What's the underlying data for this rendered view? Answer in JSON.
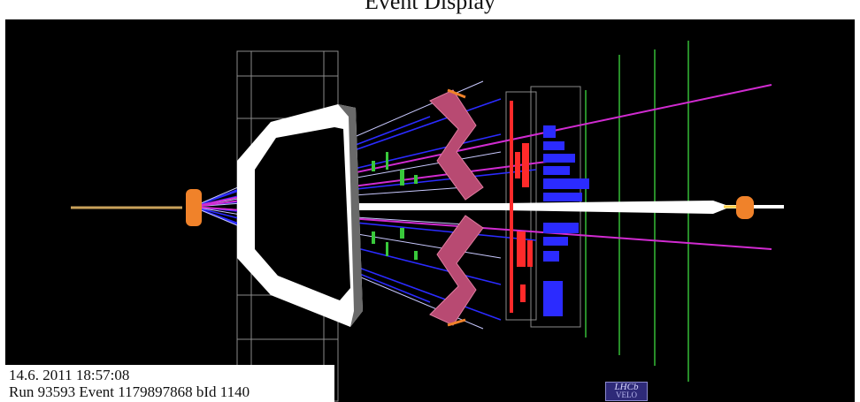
{
  "header": {
    "title": "Event Display"
  },
  "info": {
    "datetime": "14.6. 2011  18:57:08",
    "run_event": "Run 93593 Event 1179897868   bId 1140"
  },
  "logo": {
    "text": "LHCb",
    "sub": "VELO"
  },
  "colors": {
    "background": "#000000",
    "beam": "#ffffff",
    "magnet": "#ffffff",
    "rich_mirror": "#b84a72",
    "tracks_magenta": "#d12bd1",
    "tracks_blue": "#2b2bff",
    "calorimeter_red": "#ff2a2a",
    "muon_green": "#39c93b",
    "vertex_orange": "#f0822a"
  }
}
